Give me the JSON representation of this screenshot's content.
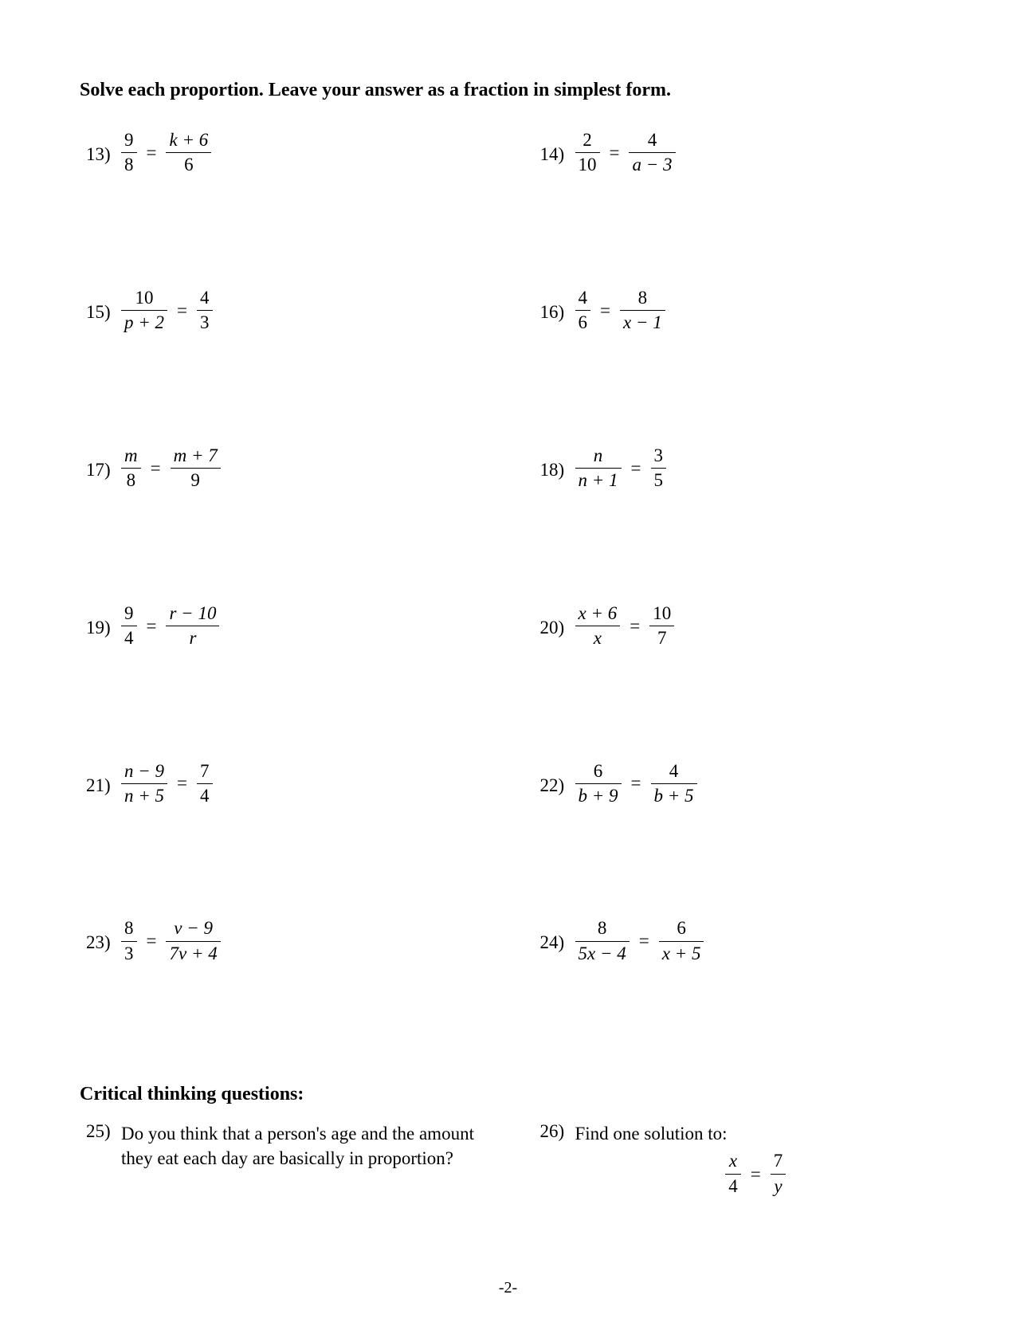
{
  "instruction": "Solve each proportion.  Leave your answer as a fraction in simplest form.",
  "problems": [
    {
      "n": "13)",
      "l": {
        "num": "9",
        "den": "8",
        "nu": true,
        "du": true
      },
      "r": {
        "num": "k + 6",
        "den": "6",
        "du": true
      }
    },
    {
      "n": "14)",
      "l": {
        "num": "2",
        "den": "10",
        "nu": true,
        "du": true
      },
      "r": {
        "num": "4",
        "den": "a − 3",
        "nu": true
      }
    },
    {
      "n": "15)",
      "l": {
        "num": "10",
        "den": "p + 2",
        "nu": true
      },
      "r": {
        "num": "4",
        "den": "3",
        "nu": true,
        "du": true
      }
    },
    {
      "n": "16)",
      "l": {
        "num": "4",
        "den": "6",
        "nu": true,
        "du": true
      },
      "r": {
        "num": "8",
        "den": "x − 1",
        "nu": true
      }
    },
    {
      "n": "17)",
      "l": {
        "num": "m",
        "den": "8",
        "du": true
      },
      "r": {
        "num": "m + 7",
        "den": "9",
        "du": true
      }
    },
    {
      "n": "18)",
      "l": {
        "num": "n",
        "den": "n + 1"
      },
      "r": {
        "num": "3",
        "den": "5",
        "nu": true,
        "du": true
      }
    },
    {
      "n": "19)",
      "l": {
        "num": "9",
        "den": "4",
        "nu": true,
        "du": true
      },
      "r": {
        "num": "r − 10",
        "den": "r"
      }
    },
    {
      "n": "20)",
      "l": {
        "num": "x + 6",
        "den": "x"
      },
      "r": {
        "num": "10",
        "den": "7",
        "nu": true,
        "du": true
      }
    },
    {
      "n": "21)",
      "l": {
        "num": "n − 9",
        "den": "n + 5"
      },
      "r": {
        "num": "7",
        "den": "4",
        "nu": true,
        "du": true
      }
    },
    {
      "n": "22)",
      "l": {
        "num": "6",
        "den": "b + 9",
        "nu": true
      },
      "r": {
        "num": "4",
        "den": "b + 5",
        "nu": true
      }
    },
    {
      "n": "23)",
      "l": {
        "num": "8",
        "den": "3",
        "nu": true,
        "du": true
      },
      "r": {
        "num": "v − 9",
        "den": "7v + 4"
      }
    },
    {
      "n": "24)",
      "l": {
        "num": "8",
        "den": "5x − 4",
        "nu": true
      },
      "r": {
        "num": "6",
        "den": "x + 5",
        "nu": true
      }
    }
  ],
  "equals": "=",
  "critical_title": "Critical thinking questions:",
  "ct": [
    {
      "n": "25)",
      "text": "Do you think that a person's age and the amount they eat each day are basically in proportion?"
    },
    {
      "n": "26)",
      "text": "Find one solution to:",
      "eq": {
        "l": {
          "num": "x",
          "den": "4",
          "du": true
        },
        "r": {
          "num": "7",
          "den": "y",
          "nu": true
        }
      }
    }
  ],
  "page_number": "-2-"
}
